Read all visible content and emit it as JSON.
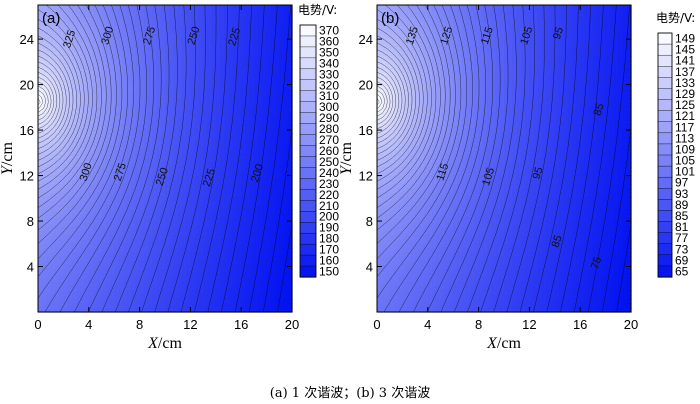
{
  "caption": "(a) 1 次谐波；(b) 3 次谐波",
  "colors": {
    "low": "#0010f0",
    "high": "#ffffff",
    "contour": "#000000"
  },
  "chart_data": [
    {
      "type": "heatmap",
      "panel_label": "(a)",
      "xlabel_italic": "X",
      "xlabel_unit": "/cm",
      "ylabel_italic": "Y",
      "ylabel_unit": "/cm",
      "xlim": [
        0,
        20
      ],
      "ylim": [
        0,
        27
      ],
      "x_ticks": [
        0,
        4,
        8,
        12,
        16,
        20
      ],
      "y_ticks": [
        4,
        8,
        12,
        16,
        20,
        24
      ],
      "colorbar_title": "电势/V:",
      "colorbar_range": [
        150,
        372
      ],
      "colorbar_ticks": [
        370,
        360,
        350,
        340,
        330,
        320,
        310,
        300,
        290,
        280,
        270,
        260,
        250,
        240,
        230,
        220,
        210,
        200,
        190,
        180,
        170,
        160,
        150
      ],
      "contour_labels": [
        {
          "x": 2.5,
          "y": 24.0,
          "text": "325"
        },
        {
          "x": 5.5,
          "y": 24.3,
          "text": "300"
        },
        {
          "x": 8.8,
          "y": 24.3,
          "text": "275"
        },
        {
          "x": 12.3,
          "y": 24.3,
          "text": "250"
        },
        {
          "x": 15.5,
          "y": 24.2,
          "text": "225"
        },
        {
          "x": 3.8,
          "y": 12.3,
          "text": "300"
        },
        {
          "x": 6.5,
          "y": 12.3,
          "text": "275"
        },
        {
          "x": 9.8,
          "y": 11.9,
          "text": "250"
        },
        {
          "x": 13.5,
          "y": 11.8,
          "text": "225"
        },
        {
          "x": 17.3,
          "y": 12.2,
          "text": "200"
        }
      ]
    },
    {
      "type": "heatmap",
      "panel_label": "(b)",
      "xlabel_italic": "X",
      "xlabel_unit": "/cm",
      "ylabel_italic": "Y",
      "ylabel_unit": "/cm",
      "xlim": [
        0,
        20
      ],
      "ylim": [
        0,
        27
      ],
      "x_ticks": [
        0,
        4,
        8,
        12,
        16,
        20
      ],
      "y_ticks": [
        4,
        8,
        12,
        16,
        20,
        24
      ],
      "colorbar_title": "电势/V:",
      "colorbar_range": [
        65,
        150
      ],
      "colorbar_ticks": [
        149,
        145,
        141,
        137,
        133,
        129,
        125,
        121,
        117,
        113,
        109,
        105,
        101,
        97,
        93,
        89,
        85,
        81,
        77,
        73,
        69,
        65
      ],
      "contour_labels": [
        {
          "x": 2.8,
          "y": 24.3,
          "text": "135"
        },
        {
          "x": 5.5,
          "y": 24.3,
          "text": "125"
        },
        {
          "x": 8.7,
          "y": 24.3,
          "text": "115"
        },
        {
          "x": 11.8,
          "y": 24.3,
          "text": "105"
        },
        {
          "x": 14.3,
          "y": 24.5,
          "text": "95"
        },
        {
          "x": 17.5,
          "y": 17.8,
          "text": "85"
        },
        {
          "x": 5.2,
          "y": 12.3,
          "text": "115"
        },
        {
          "x": 8.8,
          "y": 11.9,
          "text": "105"
        },
        {
          "x": 12.7,
          "y": 12.2,
          "text": "95"
        },
        {
          "x": 14.2,
          "y": 6.2,
          "text": "85"
        },
        {
          "x": 17.3,
          "y": 4.3,
          "text": "75"
        }
      ]
    }
  ]
}
